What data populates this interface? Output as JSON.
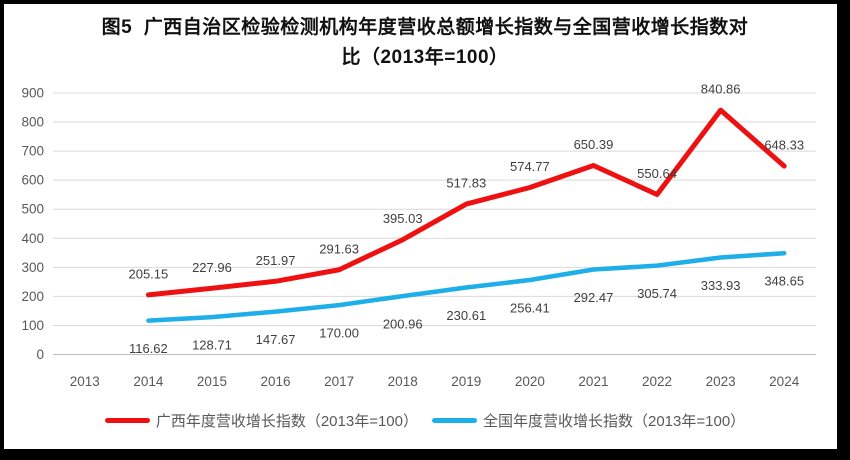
{
  "chart_data": {
    "type": "line",
    "title": "图5  广西自治区检验检测机构年度营收总额增长指数与全国营收增长指数对比（2013年=100）",
    "categories": [
      "2013",
      "2014",
      "2015",
      "2016",
      "2017",
      "2018",
      "2019",
      "2020",
      "2021",
      "2022",
      "2023",
      "2024"
    ],
    "series": [
      {
        "name": "广西年度营收增长指数（2013年=100）",
        "color": "#ee1111",
        "label_position": "above",
        "values": [
          null,
          205.15,
          227.96,
          251.97,
          291.63,
          395.03,
          517.83,
          574.77,
          650.39,
          550.64,
          840.86,
          648.33
        ]
      },
      {
        "name": "全国年度营收增长指数（2013年=100）",
        "color": "#1fafe8",
        "label_position": "below",
        "values": [
          null,
          116.62,
          128.71,
          147.67,
          170.0,
          200.96,
          230.61,
          256.41,
          292.47,
          305.74,
          333.93,
          348.65
        ]
      }
    ],
    "xlabel": "",
    "ylabel": "",
    "ylim": [
      0,
      900
    ],
    "yticks": [
      0,
      100,
      200,
      300,
      400,
      500,
      600,
      700,
      800,
      900
    ],
    "grid": true,
    "legend_position": "bottom",
    "data_label_decimals": 2
  },
  "frame": {
    "border_color": "#000000",
    "background": "#ffffff",
    "gridline_color": "#d9d9d9",
    "axis_line_color": "#bfbfbf"
  }
}
